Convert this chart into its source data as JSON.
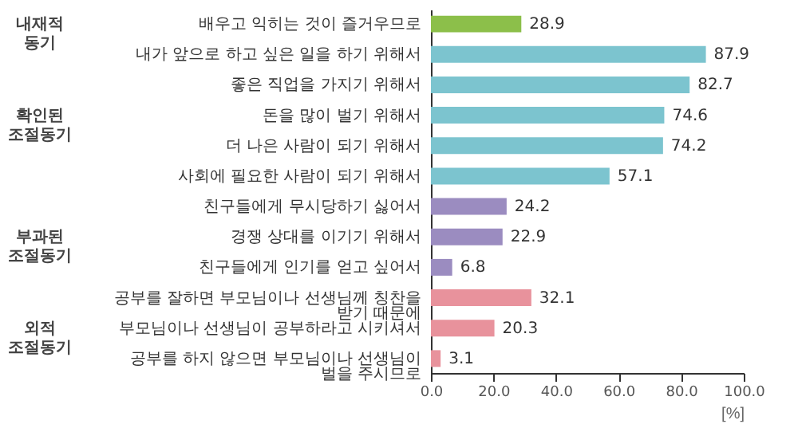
{
  "chart_data": {
    "type": "bar",
    "orientation": "horizontal",
    "categories": [
      "배우고 익히는 것이 즐거우므로",
      "내가 앞으로 하고 싶은 일을 하기 위해서",
      "좋은 직업을 가지기 위해서",
      "돈을 많이 벌기 위해서",
      "더 나은 사람이 되기 위해서",
      "사회에 필요한 사람이 되기 위해서",
      "친구들에게 무시당하기 싫어서",
      "경쟁 상대를 이기기 위해서",
      "친구들에게 인기를 얻고 싶어서",
      "공부를 잘하면 부모님이나 선생님께 칭찬을 받기 때문에",
      "부모님이나 선생님이 공부하라고 시키셔서",
      "공부를 하지 않으면 부모님이나 선생님이 벌을 주시므로"
    ],
    "values": [
      28.9,
      87.9,
      82.7,
      74.6,
      74.2,
      57.1,
      24.2,
      22.9,
      6.8,
      32.1,
      20.3,
      3.1
    ],
    "colors": [
      "#8cbf4a",
      "#7cc4cf",
      "#7cc4cf",
      "#7cc4cf",
      "#7cc4cf",
      "#7cc4cf",
      "#9b8cc0",
      "#9b8cc0",
      "#9b8cc0",
      "#e8929c",
      "#e8929c",
      "#e8929c"
    ],
    "data_labels": true,
    "xlim": [
      0,
      100
    ],
    "xticks": [
      {
        "value": 0,
        "label": "0.0"
      },
      {
        "value": 20,
        "label": "20.0"
      },
      {
        "value": 40,
        "label": "40.0"
      },
      {
        "value": 60,
        "label": "60.0"
      },
      {
        "value": 80,
        "label": "80.0"
      },
      {
        "value": 100,
        "label": "100.0"
      }
    ],
    "xlabel": "[%]",
    "grid": false,
    "annotations": [
      "내재적 동기",
      "확인된 조절동기",
      "부과된 조절동기",
      "외적 조절동기"
    ]
  }
}
